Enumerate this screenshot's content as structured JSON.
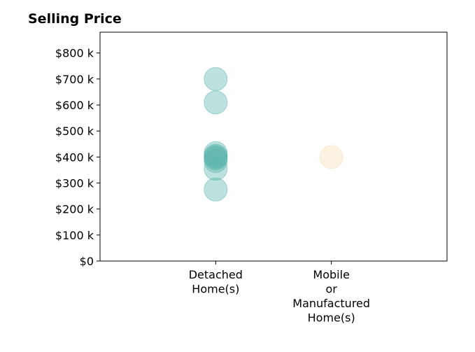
{
  "chart_data": {
    "type": "scatter",
    "title": "Selling Price",
    "xlabel": "",
    "ylabel": "",
    "categories": [
      "Detached\nHome(s)",
      "Mobile\nor\nManufactured\nHome(s)"
    ],
    "y_ticks": [
      "$0",
      "$100 k",
      "$200 k",
      "$300 k",
      "$400 k",
      "$500 k",
      "$600 k",
      "$700 k",
      "$800 k"
    ],
    "y_tick_values": [
      0,
      100000,
      200000,
      300000,
      400000,
      500000,
      600000,
      700000,
      800000
    ],
    "ylim": [
      0,
      880000
    ],
    "xlim": [
      -1,
      2
    ],
    "grid": false,
    "series": [
      {
        "category_index": 0,
        "color": "#5ab4ac",
        "values": [
          700000,
          610000,
          415000,
          405000,
          400000,
          395000,
          385000,
          355000,
          275000
        ]
      },
      {
        "category_index": 1,
        "color": "#f5deb3",
        "values": [
          400000
        ]
      }
    ]
  }
}
